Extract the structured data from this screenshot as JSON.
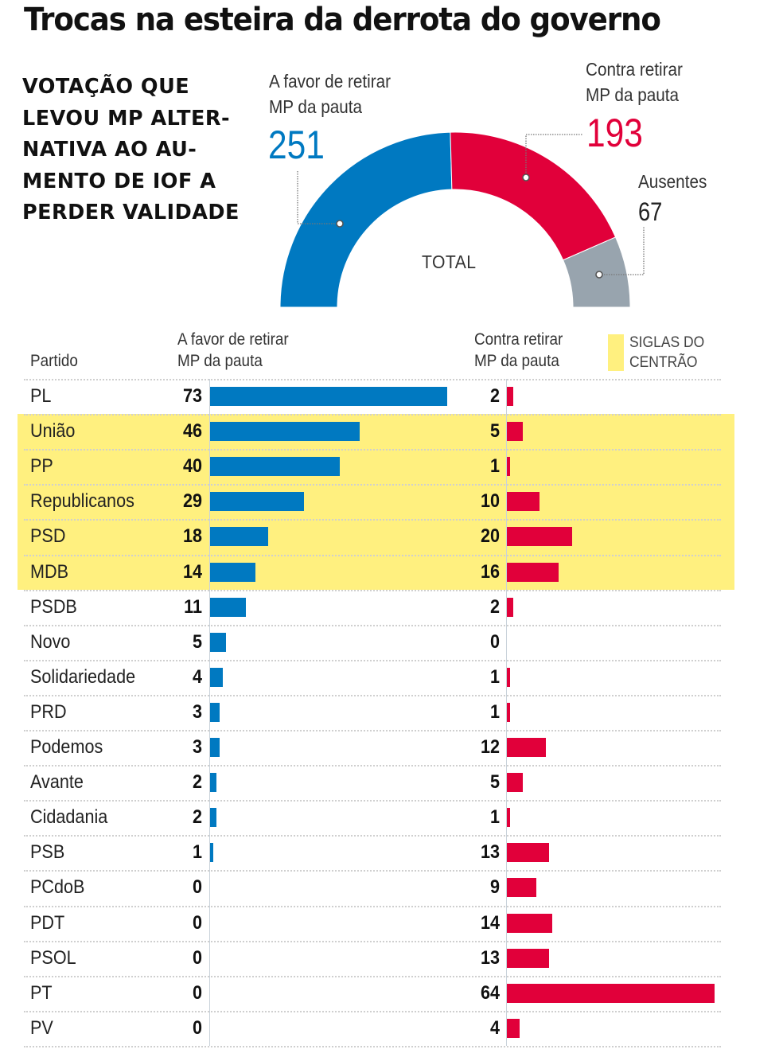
{
  "title": "Trocas na esteira da derrota do governo",
  "subtitle_lines": [
    "VOTAÇÃO QUE",
    "LEVOU MP ALTER-",
    "NATIVA AO AU-",
    "MENTO DE IOF A",
    "PERDER VALIDADE"
  ],
  "colors": {
    "favor": "#0079c1",
    "contra": "#e1003a",
    "ausentes": "#98a4ae",
    "centrao_highlight": "#fff07f"
  },
  "gauge": {
    "center_label": "TOTAL",
    "favor": {
      "label_line1": "A favor de retirar",
      "label_line2": "MP da pauta",
      "value": "251"
    },
    "contra": {
      "label_line1": "Contra retirar",
      "label_line2": "MP da pauta",
      "value": "193"
    },
    "ausentes": {
      "label": "Ausentes",
      "value": "67"
    }
  },
  "table": {
    "header_party": "Partido",
    "header_favor_line1": "A favor de retirar",
    "header_favor_line2": "MP da pauta",
    "header_contra_line1": "Contra retirar",
    "header_contra_line2": "MP da pauta",
    "legend_line1": "SIGLAS DO",
    "legend_line2": "CENTRÃO"
  },
  "chart_data": [
    {
      "type": "pie",
      "title": "TOTAL",
      "subtype": "semicircle-donut",
      "categories": [
        "A favor de retirar MP da pauta",
        "Contra retirar MP da pauta",
        "Ausentes"
      ],
      "values": [
        251,
        193,
        67
      ]
    },
    {
      "type": "bar",
      "orientation": "horizontal",
      "title": "Votação por partido",
      "xlabel": "",
      "ylabel": "Partido",
      "categories": [
        "PL",
        "União",
        "PP",
        "Republicanos",
        "PSD",
        "MDB",
        "PSDB",
        "Novo",
        "Solidariedade",
        "PRD",
        "Podemos",
        "Avante",
        "Cidadania",
        "PSB",
        "PCdoB",
        "PDT",
        "PSOL",
        "PT",
        "PV"
      ],
      "centrao": [
        false,
        true,
        true,
        true,
        true,
        true,
        false,
        false,
        false,
        false,
        false,
        false,
        false,
        false,
        false,
        false,
        false,
        false,
        false
      ],
      "series": [
        {
          "name": "A favor de retirar MP da pauta",
          "values": [
            73,
            46,
            40,
            29,
            18,
            14,
            11,
            5,
            4,
            3,
            3,
            2,
            2,
            1,
            0,
            0,
            0,
            0,
            0
          ]
        },
        {
          "name": "Contra retirar MP da pauta",
          "values": [
            2,
            5,
            1,
            10,
            20,
            16,
            2,
            0,
            1,
            1,
            12,
            5,
            1,
            13,
            9,
            14,
            13,
            64,
            4
          ]
        }
      ],
      "legend": {
        "entries": [
          "SIGLAS DO CENTRÃO"
        ],
        "placement": "top-right"
      }
    }
  ]
}
